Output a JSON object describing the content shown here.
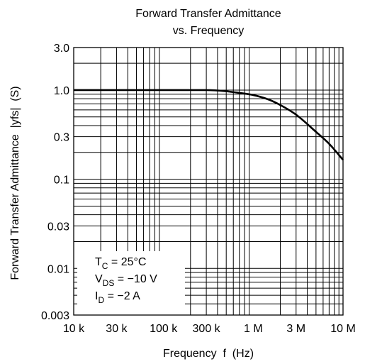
{
  "chart_data": {
    "type": "line",
    "title": [
      "Forward Transfer Admittance",
      "vs. Frequency"
    ],
    "xlabel": "Frequency  f  (Hz)",
    "ylabel": "Forward Transfer Admittance  |yfs|  (S)",
    "x_scale": "log",
    "y_scale": "log",
    "xlim": [
      10000,
      10000000
    ],
    "ylim": [
      0.003,
      3
    ],
    "grid": true,
    "x_ticks": [
      {
        "value": 10000,
        "label": "10 k"
      },
      {
        "value": 30000,
        "label": "30 k"
      },
      {
        "value": 100000,
        "label": "100 k"
      },
      {
        "value": 300000,
        "label": "300 k"
      },
      {
        "value": 1000000,
        "label": "1 M"
      },
      {
        "value": 3000000,
        "label": "3 M"
      },
      {
        "value": 10000000,
        "label": "10 M"
      }
    ],
    "y_ticks": [
      {
        "value": 3,
        "label": "3.0"
      },
      {
        "value": 1,
        "label": "1.0"
      },
      {
        "value": 0.3,
        "label": "0.3"
      },
      {
        "value": 0.1,
        "label": "0.1"
      },
      {
        "value": 0.03,
        "label": "0.03"
      },
      {
        "value": 0.01,
        "label": "0.01"
      },
      {
        "value": 0.003,
        "label": "0.003"
      }
    ],
    "series": [
      {
        "x": [
          10000,
          30000,
          100000,
          300000,
          500000,
          700000,
          1000000,
          1500000,
          2000000,
          3000000,
          5000000,
          7000000,
          10000000
        ],
        "y": [
          1.0,
          1.0,
          1.0,
          1.0,
          0.97,
          0.93,
          0.88,
          0.78,
          0.68,
          0.53,
          0.34,
          0.25,
          0.165
        ]
      }
    ],
    "annotations": [
      {
        "main": "T",
        "sub": "C",
        "rest": " = 25°C"
      },
      {
        "main": "V",
        "sub": "DS",
        "rest": " = −10 V"
      },
      {
        "main": "I",
        "sub": "D",
        "rest": " = −2 A"
      }
    ]
  }
}
